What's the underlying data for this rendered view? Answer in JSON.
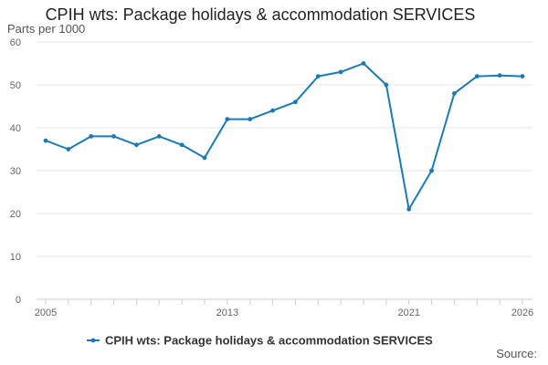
{
  "chart_data": {
    "type": "line",
    "title": "CPIH wts: Package holidays & accommodation SERVICES",
    "ylabel": "Parts per 1000",
    "xlabel": "",
    "ylim": [
      0,
      60
    ],
    "yticks": [
      0,
      10,
      20,
      30,
      40,
      50,
      60
    ],
    "xlim": [
      2005,
      2026
    ],
    "xtick_labels": [
      "2005",
      "2013",
      "2021",
      "2026"
    ],
    "grid": true,
    "legend_position": "bottom",
    "series": [
      {
        "name": "CPIH wts: Package holidays & accommodation SERVICES",
        "color": "#1a7ab7",
        "x": [
          2005,
          2006,
          2007,
          2008,
          2009,
          2010,
          2011,
          2012,
          2013,
          2014,
          2015,
          2016,
          2017,
          2018,
          2019,
          2020,
          2021,
          2022,
          2023,
          2024,
          2025,
          2026
        ],
        "values": [
          37,
          35,
          38,
          38,
          36,
          38,
          36,
          33,
          42,
          42,
          44,
          46,
          52,
          53,
          55,
          50,
          21,
          30,
          48,
          52,
          52.2,
          52
        ]
      }
    ]
  },
  "source_label": "Source:"
}
